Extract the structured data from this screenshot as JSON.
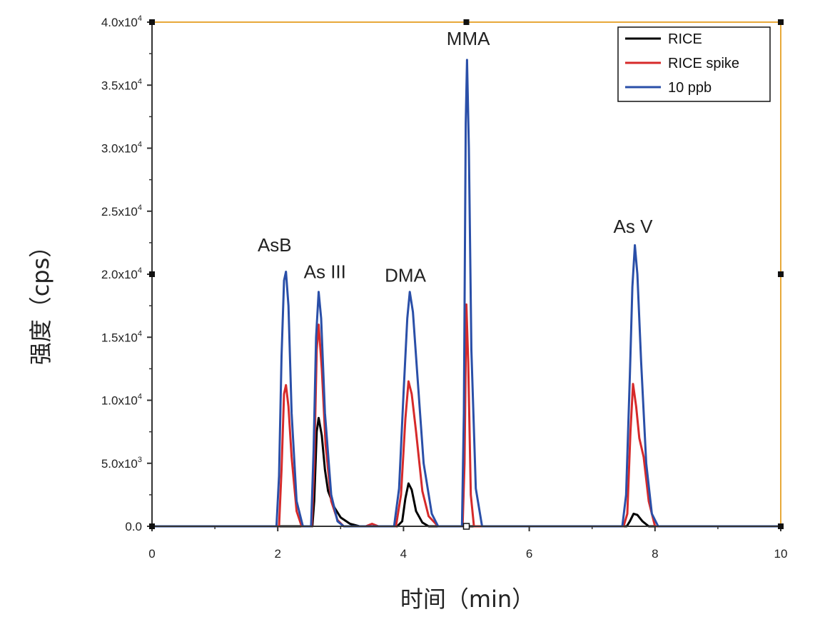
{
  "chart_data": {
    "type": "line",
    "xlabel": "时间（min）",
    "ylabel": "强度（cps）",
    "xlim": [
      0,
      10
    ],
    "ylim": [
      0,
      40000
    ],
    "grid": false,
    "legend_position": "top-right",
    "x_ticks": [
      {
        "value": 0,
        "label": "0"
      },
      {
        "value": 2,
        "label": "2"
      },
      {
        "value": 4,
        "label": "4"
      },
      {
        "value": 6,
        "label": "6"
      },
      {
        "value": 8,
        "label": "8"
      },
      {
        "value": 10,
        "label": "10"
      }
    ],
    "y_ticks": [
      {
        "value": 0,
        "label": "0.0",
        "exp": ""
      },
      {
        "value": 5000,
        "label": "5.0x10",
        "exp": "3"
      },
      {
        "value": 10000,
        "label": "1.0x10",
        "exp": "4"
      },
      {
        "value": 15000,
        "label": "1.5x10",
        "exp": "4"
      },
      {
        "value": 20000,
        "label": "2.0x10",
        "exp": "4"
      },
      {
        "value": 25000,
        "label": "2.5x10",
        "exp": "4"
      },
      {
        "value": 30000,
        "label": "3.0x10",
        "exp": "4"
      },
      {
        "value": 35000,
        "label": "3.5x10",
        "exp": "4"
      },
      {
        "value": 40000,
        "label": "4.0x10",
        "exp": "4"
      }
    ],
    "peak_labels": [
      {
        "text": "AsB",
        "x": 1.95,
        "y": 21800
      },
      {
        "text": "As III",
        "x": 2.75,
        "y": 19700
      },
      {
        "text": "DMA",
        "x": 4.03,
        "y": 19400
      },
      {
        "text": "MMA",
        "x": 5.03,
        "y": 38200
      },
      {
        "text": "As V",
        "x": 7.65,
        "y": 23300
      }
    ],
    "series": [
      {
        "name": "RICE",
        "color": "#000000",
        "points": [
          [
            0,
            0
          ],
          [
            2.55,
            0
          ],
          [
            2.58,
            2000
          ],
          [
            2.62,
            7500
          ],
          [
            2.65,
            8600
          ],
          [
            2.7,
            7200
          ],
          [
            2.75,
            4500
          ],
          [
            2.8,
            2800
          ],
          [
            2.9,
            1500
          ],
          [
            3.0,
            700
          ],
          [
            3.15,
            200
          ],
          [
            3.3,
            0
          ],
          [
            3.9,
            0
          ],
          [
            3.98,
            400
          ],
          [
            4.03,
            2200
          ],
          [
            4.08,
            3400
          ],
          [
            4.13,
            2900
          ],
          [
            4.2,
            1200
          ],
          [
            4.3,
            300
          ],
          [
            4.4,
            0
          ],
          [
            7.55,
            0
          ],
          [
            7.6,
            400
          ],
          [
            7.66,
            1000
          ],
          [
            7.72,
            900
          ],
          [
            7.8,
            400
          ],
          [
            7.9,
            0
          ],
          [
            10,
            0
          ]
        ]
      },
      {
        "name": "RICE spike",
        "color": "#d62a2a",
        "points": [
          [
            0,
            0
          ],
          [
            2.02,
            0
          ],
          [
            2.06,
            4500
          ],
          [
            2.1,
            10500
          ],
          [
            2.13,
            11200
          ],
          [
            2.17,
            9500
          ],
          [
            2.22,
            5500
          ],
          [
            2.3,
            1200
          ],
          [
            2.38,
            0
          ],
          [
            2.54,
            0
          ],
          [
            2.58,
            5000
          ],
          [
            2.62,
            14000
          ],
          [
            2.65,
            16000
          ],
          [
            2.7,
            12500
          ],
          [
            2.76,
            6500
          ],
          [
            2.85,
            2000
          ],
          [
            2.95,
            500
          ],
          [
            3.05,
            0
          ],
          [
            3.4,
            0
          ],
          [
            3.5,
            200
          ],
          [
            3.6,
            0
          ],
          [
            3.88,
            0
          ],
          [
            3.96,
            2500
          ],
          [
            4.03,
            8500
          ],
          [
            4.08,
            11500
          ],
          [
            4.13,
            10500
          ],
          [
            4.2,
            7500
          ],
          [
            4.3,
            2800
          ],
          [
            4.4,
            800
          ],
          [
            4.55,
            0
          ],
          [
            4.94,
            0
          ],
          [
            4.97,
            5000
          ],
          [
            5.0,
            17600
          ],
          [
            5.03,
            13000
          ],
          [
            5.07,
            2500
          ],
          [
            5.12,
            0
          ],
          [
            7.5,
            0
          ],
          [
            7.56,
            1000
          ],
          [
            7.61,
            7500
          ],
          [
            7.65,
            11300
          ],
          [
            7.7,
            9500
          ],
          [
            7.75,
            7000
          ],
          [
            7.82,
            5500
          ],
          [
            7.9,
            2000
          ],
          [
            8.0,
            0
          ],
          [
            10,
            0
          ]
        ]
      },
      {
        "name": "10 ppb",
        "color": "#2a4fa8",
        "points": [
          [
            0,
            0
          ],
          [
            1.98,
            0
          ],
          [
            2.02,
            4000
          ],
          [
            2.06,
            13500
          ],
          [
            2.1,
            19500
          ],
          [
            2.13,
            20200
          ],
          [
            2.17,
            17500
          ],
          [
            2.22,
            9000
          ],
          [
            2.3,
            2000
          ],
          [
            2.4,
            0
          ],
          [
            2.53,
            0
          ],
          [
            2.57,
            6000
          ],
          [
            2.61,
            15000
          ],
          [
            2.65,
            18600
          ],
          [
            2.69,
            16500
          ],
          [
            2.75,
            9000
          ],
          [
            2.85,
            2500
          ],
          [
            2.95,
            400
          ],
          [
            3.05,
            0
          ],
          [
            3.85,
            0
          ],
          [
            3.93,
            3000
          ],
          [
            4.0,
            10500
          ],
          [
            4.06,
            16500
          ],
          [
            4.1,
            18600
          ],
          [
            4.15,
            17000
          ],
          [
            4.22,
            12000
          ],
          [
            4.32,
            5000
          ],
          [
            4.45,
            1000
          ],
          [
            4.55,
            0
          ],
          [
            4.93,
            0
          ],
          [
            4.96,
            9000
          ],
          [
            4.99,
            32000
          ],
          [
            5.01,
            37000
          ],
          [
            5.04,
            30000
          ],
          [
            5.08,
            14000
          ],
          [
            5.15,
            3000
          ],
          [
            5.25,
            0
          ],
          [
            7.48,
            0
          ],
          [
            7.54,
            2500
          ],
          [
            7.6,
            12000
          ],
          [
            7.64,
            19000
          ],
          [
            7.68,
            22300
          ],
          [
            7.72,
            20000
          ],
          [
            7.78,
            13000
          ],
          [
            7.86,
            5000
          ],
          [
            7.95,
            1000
          ],
          [
            8.05,
            0
          ],
          [
            10,
            0
          ]
        ]
      }
    ]
  }
}
